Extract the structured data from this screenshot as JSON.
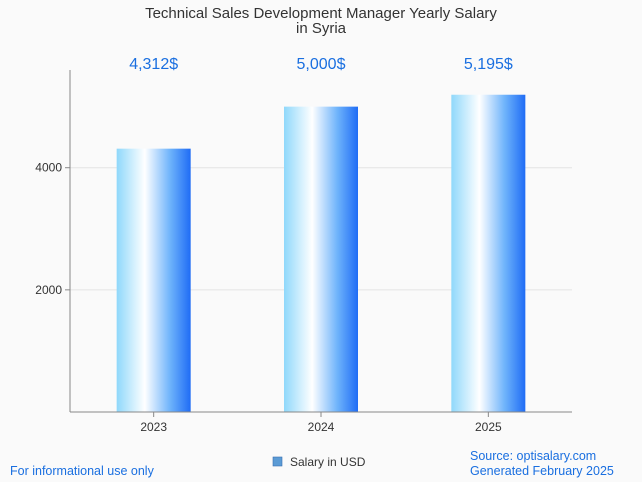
{
  "chart_data": {
    "type": "bar",
    "title": "Technical Sales Development Manager Yearly Salary in Syria",
    "title_lines": [
      "Technical Sales Development Manager Yearly Salary",
      "in Syria"
    ],
    "categories": [
      "2023",
      "2024",
      "2025"
    ],
    "values": [
      4312,
      5000,
      5195
    ],
    "data_labels": [
      "4,312$",
      "5,000$",
      "5,195$"
    ],
    "ylim": [
      0,
      5600
    ],
    "yticks": [
      2000,
      4000
    ],
    "xlabel": "",
    "ylabel": "",
    "grid": true,
    "series_name": "Salary in USD",
    "legend_position": "bottom-center"
  },
  "footer": {
    "left": "For informational use only",
    "source": "Source: optisalary.com",
    "generated": "Generated February 2025"
  },
  "colors": {
    "bar_light": "#ffffff",
    "bar_mid": "#8fd8fb",
    "bar_dark": "#1f6cf5",
    "accent": "#1a6fe0",
    "grid": "#e3e3e3",
    "axis": "#888888"
  }
}
